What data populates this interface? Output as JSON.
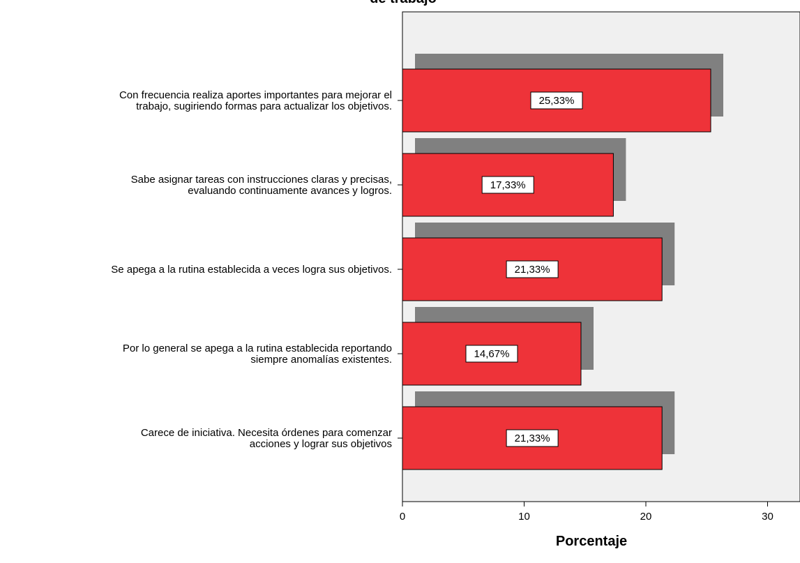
{
  "chart_data": {
    "type": "bar",
    "orientation": "horizontal",
    "title": "de trabajo",
    "categories": [
      [
        "Con frecuencia realiza aportes importantes para mejorar el",
        "trabajo, sugiriendo formas para actualizar los objetivos."
      ],
      [
        "Sabe asignar tareas con instrucciones claras y precisas,",
        "evaluando continuamente avances y logros."
      ],
      [
        "Se apega a la rutina establecida a veces logra sus objetivos."
      ],
      [
        "Por lo general se apega a la rutina establecida reportando",
        "siempre anomalías existentes."
      ],
      [
        "Carece de iniciativa. Necesita órdenes para comenzar",
        "acciones y lograr sus objetivos"
      ]
    ],
    "values": [
      25.33,
      17.33,
      21.33,
      14.67,
      21.33
    ],
    "data_labels": [
      "25,33%",
      "17,33%",
      "21,33%",
      "14,67%",
      "21,33%"
    ],
    "xlabel": "Porcentaje",
    "ylabel": "",
    "xlim": [
      0,
      32
    ],
    "x_ticks": [
      0,
      10,
      20,
      30
    ],
    "grid": false,
    "bar_color": "#ee3339",
    "shadow_color": "#808080",
    "plot_background": "#f0f0f0"
  }
}
